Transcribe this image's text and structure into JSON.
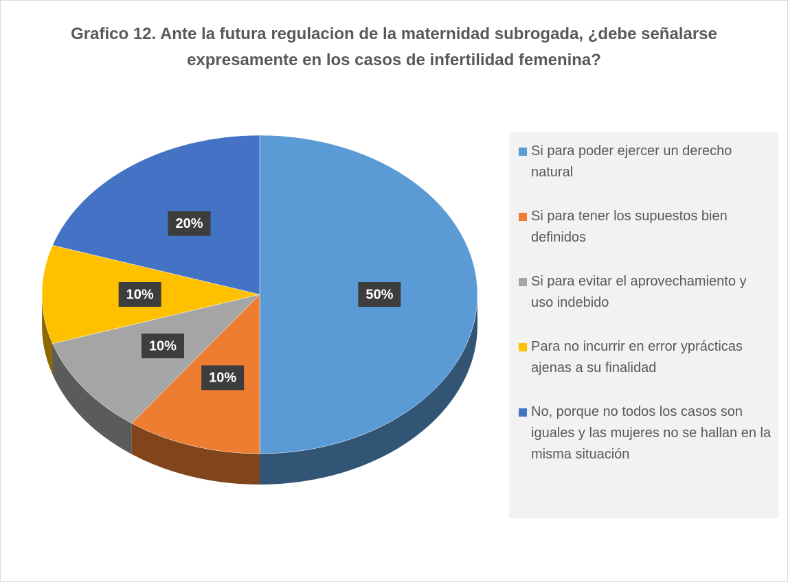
{
  "chart_data": {
    "type": "pie",
    "title": "Grafico 12. Ante la futura regulacion de la maternidad subrogada, ¿debe señalarse expresamente en los casos de infertilidad femenina?",
    "categories": [
      "Si para poder ejercer un derecho natural",
      "Si para tener los supuestos bien definidos",
      "Si para evitar el aprovechamiento y uso indebido",
      "Para no incurrir en error yprácticas ajenas a su finalidad",
      "No, porque no todos los casos son iguales y las mujeres no se hallan en la misma situación"
    ],
    "values": [
      50,
      10,
      10,
      10,
      20
    ],
    "value_labels": [
      "50%",
      "10%",
      "10%",
      "10%",
      "20%"
    ],
    "colors": [
      "#5b9bd5",
      "#ed7d31",
      "#a5a5a5",
      "#ffc000",
      "#4472c4"
    ],
    "legend": "right"
  }
}
